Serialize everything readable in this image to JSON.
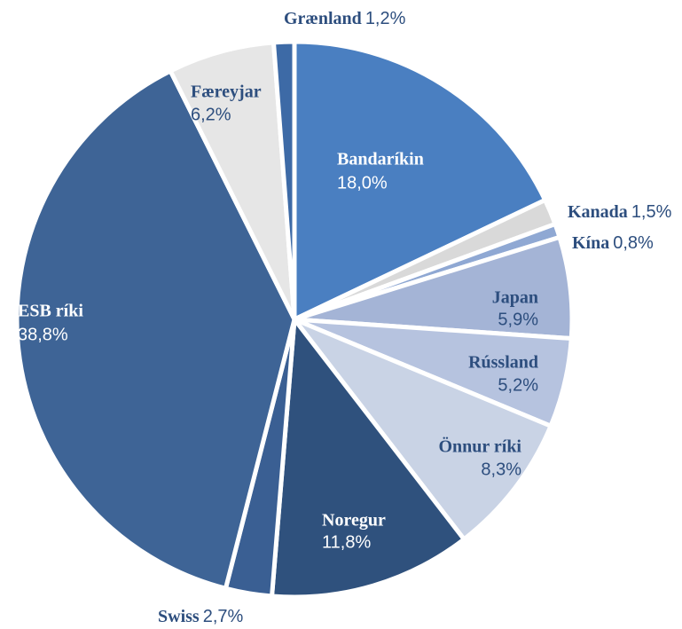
{
  "chart_data": {
    "type": "pie",
    "categories": [
      "Bandaríkin",
      "Kanada",
      "Kína",
      "Japan",
      "Rússland",
      "Önnur ríki",
      "Noregur",
      "Swiss",
      "ESB ríki",
      "Færeyjar",
      "Grænland"
    ],
    "values": [
      18.0,
      1.5,
      0.8,
      5.9,
      5.2,
      8.3,
      11.8,
      2.7,
      38.8,
      6.2,
      1.2
    ],
    "value_labels": [
      "18,0%",
      "1,5%",
      "0,8%",
      "5,9%",
      "5,2%",
      "8,3%",
      "11,8%",
      "2,7%",
      "38,8%",
      "6,2%",
      "1,2%"
    ],
    "colors": [
      "#4a7fc1",
      "#d9d9d9",
      "#8fa8d3",
      "#a4b4d6",
      "#b6c3df",
      "#c9d3e5",
      "#2f517d",
      "#3a5f93",
      "#3e6496",
      "#e6e6e6",
      "#3d6aa6"
    ]
  }
}
